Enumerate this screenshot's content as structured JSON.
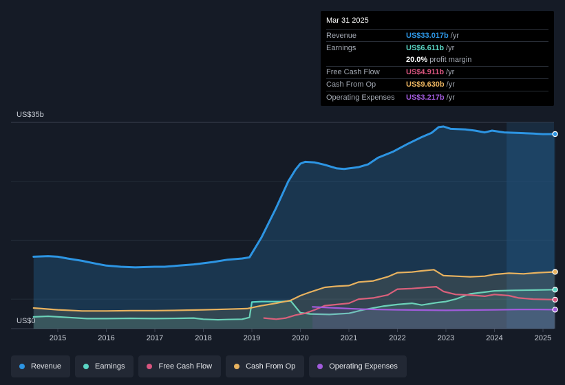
{
  "chart_data": {
    "type": "area",
    "title": "",
    "y_axis": {
      "min": 0,
      "max": 35,
      "top_label": "US$35b",
      "bottom_label": "US$0"
    },
    "x_ticks": [
      "2015",
      "2016",
      "2017",
      "2018",
      "2019",
      "2020",
      "2021",
      "2022",
      "2023",
      "2024",
      "2025"
    ],
    "x_range": [
      2014.5,
      2025.25
    ],
    "highlight_from": 2024.25,
    "series": [
      {
        "name": "Revenue",
        "color": "#2d95e3",
        "fill": true,
        "points": [
          [
            2014.5,
            12.2
          ],
          [
            2014.8,
            12.3
          ],
          [
            2015.0,
            12.2
          ],
          [
            2015.2,
            11.9
          ],
          [
            2015.5,
            11.5
          ],
          [
            2015.8,
            11.0
          ],
          [
            2016.0,
            10.7
          ],
          [
            2016.3,
            10.5
          ],
          [
            2016.6,
            10.4
          ],
          [
            2017.0,
            10.5
          ],
          [
            2017.2,
            10.5
          ],
          [
            2017.5,
            10.7
          ],
          [
            2017.8,
            10.9
          ],
          [
            2018.0,
            11.1
          ],
          [
            2018.2,
            11.3
          ],
          [
            2018.5,
            11.7
          ],
          [
            2018.8,
            11.9
          ],
          [
            2018.95,
            12.1
          ],
          [
            2019.2,
            15.5
          ],
          [
            2019.5,
            20.5
          ],
          [
            2019.75,
            25.0
          ],
          [
            2019.9,
            27.0
          ],
          [
            2020.0,
            28.0
          ],
          [
            2020.1,
            28.3
          ],
          [
            2020.3,
            28.2
          ],
          [
            2020.5,
            27.8
          ],
          [
            2020.75,
            27.2
          ],
          [
            2020.9,
            27.1
          ],
          [
            2021.2,
            27.4
          ],
          [
            2021.4,
            27.9
          ],
          [
            2021.6,
            29.0
          ],
          [
            2021.9,
            30.0
          ],
          [
            2022.2,
            31.3
          ],
          [
            2022.5,
            32.5
          ],
          [
            2022.7,
            33.2
          ],
          [
            2022.85,
            34.2
          ],
          [
            2022.95,
            34.3
          ],
          [
            2023.1,
            33.9
          ],
          [
            2023.4,
            33.8
          ],
          [
            2023.6,
            33.6
          ],
          [
            2023.8,
            33.3
          ],
          [
            2023.95,
            33.6
          ],
          [
            2024.2,
            33.3
          ],
          [
            2024.5,
            33.2
          ],
          [
            2024.8,
            33.1
          ],
          [
            2025.0,
            33.0
          ],
          [
            2025.25,
            33.017
          ]
        ]
      },
      {
        "name": "Earnings",
        "color": "#5ad5c4",
        "fill": true,
        "points": [
          [
            2014.5,
            2.0
          ],
          [
            2014.8,
            2.1
          ],
          [
            2015.2,
            1.9
          ],
          [
            2015.6,
            1.7
          ],
          [
            2016.0,
            1.7
          ],
          [
            2016.5,
            1.75
          ],
          [
            2017.0,
            1.7
          ],
          [
            2017.5,
            1.75
          ],
          [
            2017.8,
            1.8
          ],
          [
            2018.0,
            1.6
          ],
          [
            2018.3,
            1.5
          ],
          [
            2018.5,
            1.55
          ],
          [
            2018.8,
            1.6
          ],
          [
            2018.95,
            1.9
          ],
          [
            2019.0,
            4.5
          ],
          [
            2019.2,
            4.6
          ],
          [
            2019.6,
            4.6
          ],
          [
            2019.8,
            4.7
          ],
          [
            2020.0,
            2.7
          ],
          [
            2020.2,
            2.5
          ],
          [
            2020.6,
            2.4
          ],
          [
            2021.0,
            2.6
          ],
          [
            2021.3,
            3.2
          ],
          [
            2021.7,
            3.8
          ],
          [
            2022.0,
            4.1
          ],
          [
            2022.3,
            4.3
          ],
          [
            2022.5,
            4.0
          ],
          [
            2022.8,
            4.4
          ],
          [
            2023.0,
            4.6
          ],
          [
            2023.2,
            5.0
          ],
          [
            2023.5,
            5.9
          ],
          [
            2023.8,
            6.2
          ],
          [
            2024.0,
            6.4
          ],
          [
            2024.4,
            6.5
          ],
          [
            2024.8,
            6.55
          ],
          [
            2025.25,
            6.611
          ]
        ]
      },
      {
        "name": "Free Cash Flow",
        "color": "#d9557f",
        "fill": false,
        "points": [
          [
            2019.25,
            1.8
          ],
          [
            2019.5,
            1.6
          ],
          [
            2019.7,
            1.8
          ],
          [
            2019.9,
            2.3
          ],
          [
            2020.1,
            2.6
          ],
          [
            2020.3,
            3.2
          ],
          [
            2020.5,
            3.9
          ],
          [
            2020.75,
            4.1
          ],
          [
            2021.0,
            4.3
          ],
          [
            2021.2,
            5.0
          ],
          [
            2021.5,
            5.2
          ],
          [
            2021.8,
            5.7
          ],
          [
            2022.0,
            6.7
          ],
          [
            2022.3,
            6.8
          ],
          [
            2022.6,
            7.0
          ],
          [
            2022.8,
            7.1
          ],
          [
            2022.95,
            6.3
          ],
          [
            2023.2,
            5.8
          ],
          [
            2023.5,
            5.7
          ],
          [
            2023.8,
            5.5
          ],
          [
            2024.0,
            5.8
          ],
          [
            2024.3,
            5.6
          ],
          [
            2024.5,
            5.2
          ],
          [
            2024.8,
            5.0
          ],
          [
            2025.25,
            4.911
          ]
        ]
      },
      {
        "name": "Cash From Op",
        "color": "#e8b25f",
        "fill": true,
        "points": [
          [
            2014.5,
            3.5
          ],
          [
            2015.0,
            3.2
          ],
          [
            2015.5,
            3.0
          ],
          [
            2016.0,
            3.0
          ],
          [
            2016.5,
            3.05
          ],
          [
            2017.0,
            3.05
          ],
          [
            2017.5,
            3.1
          ],
          [
            2018.0,
            3.2
          ],
          [
            2018.5,
            3.3
          ],
          [
            2018.9,
            3.4
          ],
          [
            2019.2,
            3.9
          ],
          [
            2019.5,
            4.3
          ],
          [
            2019.8,
            4.8
          ],
          [
            2020.0,
            5.6
          ],
          [
            2020.2,
            6.2
          ],
          [
            2020.5,
            7.0
          ],
          [
            2020.75,
            7.2
          ],
          [
            2021.0,
            7.3
          ],
          [
            2021.2,
            7.9
          ],
          [
            2021.5,
            8.1
          ],
          [
            2021.8,
            8.8
          ],
          [
            2022.0,
            9.5
          ],
          [
            2022.3,
            9.6
          ],
          [
            2022.5,
            9.8
          ],
          [
            2022.75,
            10.0
          ],
          [
            2022.95,
            9.0
          ],
          [
            2023.2,
            8.9
          ],
          [
            2023.5,
            8.8
          ],
          [
            2023.8,
            8.9
          ],
          [
            2024.0,
            9.2
          ],
          [
            2024.3,
            9.4
          ],
          [
            2024.6,
            9.3
          ],
          [
            2024.9,
            9.5
          ],
          [
            2025.25,
            9.63
          ]
        ]
      },
      {
        "name": "Operating Expenses",
        "color": "#a15bdc",
        "fill": true,
        "points": [
          [
            2020.25,
            3.7
          ],
          [
            2020.5,
            3.6
          ],
          [
            2020.75,
            3.5
          ],
          [
            2021.0,
            3.4
          ],
          [
            2021.3,
            3.3
          ],
          [
            2021.6,
            3.25
          ],
          [
            2022.0,
            3.2
          ],
          [
            2022.5,
            3.15
          ],
          [
            2023.0,
            3.1
          ],
          [
            2023.5,
            3.15
          ],
          [
            2024.0,
            3.2
          ],
          [
            2024.5,
            3.25
          ],
          [
            2024.9,
            3.25
          ],
          [
            2025.25,
            3.217
          ]
        ]
      }
    ]
  },
  "tooltip": {
    "date": "Mar 31 2025",
    "rows": [
      {
        "label": "Revenue",
        "value": "US$33.017b",
        "unit": "/yr",
        "color": "#2d95e3"
      },
      {
        "label": "Earnings",
        "value": "US$6.611b",
        "unit": "/yr",
        "color": "#5ad5c4"
      },
      {
        "label": "",
        "value": "20.0%",
        "unit": "profit margin",
        "color": "#ffffff"
      },
      {
        "label": "Free Cash Flow",
        "value": "US$4.911b",
        "unit": "/yr",
        "color": "#d9557f"
      },
      {
        "label": "Cash From Op",
        "value": "US$9.630b",
        "unit": "/yr",
        "color": "#e8b25f"
      },
      {
        "label": "Operating Expenses",
        "value": "US$3.217b",
        "unit": "/yr",
        "color": "#a15bdc"
      }
    ]
  },
  "legend": [
    {
      "label": "Revenue",
      "color": "#2d95e3"
    },
    {
      "label": "Earnings",
      "color": "#5ad5c4"
    },
    {
      "label": "Free Cash Flow",
      "color": "#d9557f"
    },
    {
      "label": "Cash From Op",
      "color": "#e8b25f"
    },
    {
      "label": "Operating Expenses",
      "color": "#a15bdc"
    }
  ]
}
